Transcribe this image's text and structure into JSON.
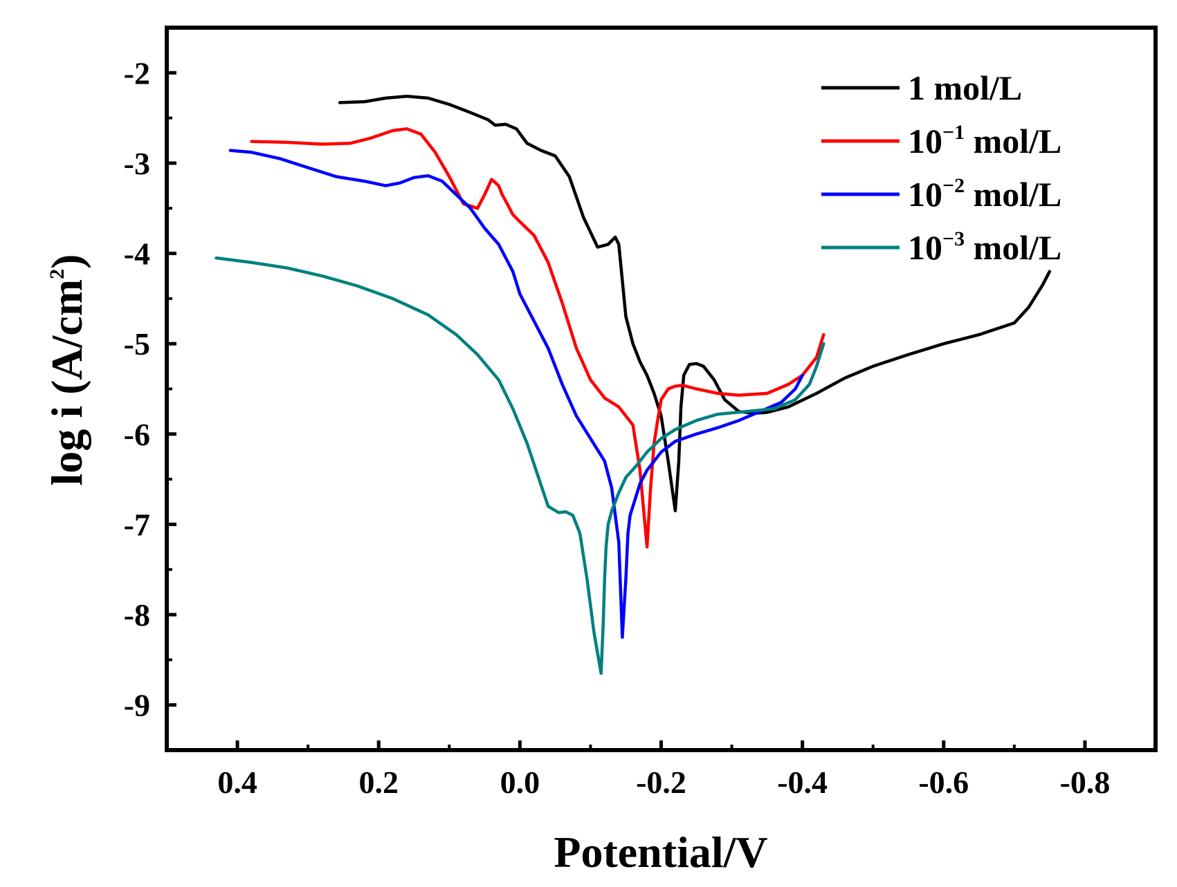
{
  "chart_data": {
    "type": "line",
    "xlabel": "Potential/V",
    "ylabel_main": "log i (A/cm",
    "ylabel_sup": "2",
    "ylabel_close": ")",
    "xlim": [
      0.5,
      -0.9
    ],
    "ylim": [
      -9.5,
      -1.5
    ],
    "x_ticks": [
      0.4,
      0.2,
      0.0,
      -0.2,
      -0.4,
      -0.6,
      -0.8
    ],
    "x_tick_labels": [
      "0.4",
      "0.2",
      "0.0",
      "-0.2",
      "-0.4",
      "-0.6",
      "-0.8"
    ],
    "y_ticks": [
      -2,
      -3,
      -4,
      -5,
      -6,
      -7,
      -8,
      -9
    ],
    "y_tick_labels": [
      "-2",
      "-3",
      "-4",
      "-5",
      "-6",
      "-7",
      "-8",
      "-9"
    ],
    "grid": false,
    "legend_position": "top-right",
    "series": [
      {
        "name": "1 mol/L",
        "legend_base": "1 mol/L",
        "legend_sup": "",
        "legend_tail": "",
        "color": "#000000",
        "x": [
          0.255,
          0.22,
          0.19,
          0.16,
          0.13,
          0.1,
          0.07,
          0.045,
          0.035,
          0.02,
          0.005,
          -0.01,
          -0.03,
          -0.05,
          -0.07,
          -0.09,
          -0.11,
          -0.125,
          -0.135,
          -0.14,
          -0.145,
          -0.15,
          -0.16,
          -0.17,
          -0.18,
          -0.19,
          -0.2,
          -0.21,
          -0.22,
          -0.225,
          -0.228,
          -0.232,
          -0.24,
          -0.25,
          -0.26,
          -0.275,
          -0.29,
          -0.31,
          -0.33,
          -0.35,
          -0.38,
          -0.42,
          -0.46,
          -0.5,
          -0.55,
          -0.6,
          -0.65,
          -0.7,
          -0.72,
          -0.74,
          -0.75
        ],
        "y": [
          -2.33,
          -2.32,
          -2.28,
          -2.26,
          -2.28,
          -2.35,
          -2.44,
          -2.52,
          -2.58,
          -2.57,
          -2.62,
          -2.78,
          -2.86,
          -2.92,
          -3.15,
          -3.6,
          -3.93,
          -3.9,
          -3.82,
          -3.9,
          -4.3,
          -4.7,
          -5.0,
          -5.2,
          -5.35,
          -5.55,
          -5.8,
          -6.3,
          -6.85,
          -6.3,
          -5.7,
          -5.35,
          -5.23,
          -5.22,
          -5.25,
          -5.4,
          -5.62,
          -5.75,
          -5.77,
          -5.76,
          -5.7,
          -5.55,
          -5.38,
          -5.25,
          -5.12,
          -5.0,
          -4.9,
          -4.77,
          -4.6,
          -4.35,
          -4.2
        ]
      },
      {
        "name": "10⁻¹ mol/L",
        "legend_base": "10",
        "legend_sup": "−1",
        "legend_tail": " mol/L",
        "color": "#ff0000",
        "x": [
          0.38,
          0.33,
          0.28,
          0.24,
          0.21,
          0.18,
          0.16,
          0.14,
          0.12,
          0.1,
          0.08,
          0.06,
          0.05,
          0.04,
          0.03,
          0.025,
          0.02,
          0.01,
          0.0,
          -0.02,
          -0.04,
          -0.06,
          -0.08,
          -0.1,
          -0.12,
          -0.14,
          -0.16,
          -0.17,
          -0.18,
          -0.185,
          -0.188,
          -0.19,
          -0.195,
          -0.2,
          -0.21,
          -0.22,
          -0.23,
          -0.25,
          -0.28,
          -0.31,
          -0.35,
          -0.38,
          -0.4,
          -0.42,
          -0.43
        ],
        "y": [
          -2.76,
          -2.77,
          -2.79,
          -2.78,
          -2.72,
          -2.64,
          -2.62,
          -2.68,
          -2.88,
          -3.15,
          -3.45,
          -3.5,
          -3.35,
          -3.18,
          -3.25,
          -3.35,
          -3.42,
          -3.57,
          -3.65,
          -3.8,
          -4.1,
          -4.55,
          -5.05,
          -5.4,
          -5.6,
          -5.7,
          -5.9,
          -6.4,
          -7.25,
          -6.6,
          -6.3,
          -6.1,
          -5.85,
          -5.62,
          -5.5,
          -5.47,
          -5.46,
          -5.5,
          -5.55,
          -5.57,
          -5.55,
          -5.45,
          -5.35,
          -5.15,
          -4.9
        ]
      },
      {
        "name": "10⁻² mol/L",
        "legend_base": "10",
        "legend_sup": "−2",
        "legend_tail": " mol/L",
        "color": "#0000ff",
        "x": [
          0.41,
          0.38,
          0.34,
          0.3,
          0.26,
          0.22,
          0.19,
          0.17,
          0.15,
          0.13,
          0.11,
          0.09,
          0.07,
          0.05,
          0.03,
          0.01,
          0.0,
          -0.02,
          -0.04,
          -0.06,
          -0.08,
          -0.1,
          -0.12,
          -0.13,
          -0.14,
          -0.145,
          -0.15,
          -0.153,
          -0.156,
          -0.16,
          -0.17,
          -0.18,
          -0.2,
          -0.22,
          -0.25,
          -0.28,
          -0.31,
          -0.34,
          -0.37,
          -0.39,
          -0.4
        ],
        "y": [
          -2.86,
          -2.88,
          -2.95,
          -3.05,
          -3.15,
          -3.2,
          -3.25,
          -3.22,
          -3.16,
          -3.14,
          -3.2,
          -3.35,
          -3.5,
          -3.72,
          -3.9,
          -4.2,
          -4.45,
          -4.75,
          -5.05,
          -5.45,
          -5.8,
          -6.05,
          -6.3,
          -6.6,
          -7.2,
          -8.25,
          -7.6,
          -7.1,
          -6.9,
          -6.8,
          -6.55,
          -6.4,
          -6.2,
          -6.08,
          -6.0,
          -5.93,
          -5.85,
          -5.75,
          -5.65,
          -5.5,
          -5.35
        ]
      },
      {
        "name": "10⁻³ mol/L",
        "legend_base": "10",
        "legend_sup": "−3",
        "legend_tail": " mol/L",
        "color": "#008080",
        "x": [
          0.43,
          0.38,
          0.33,
          0.28,
          0.23,
          0.18,
          0.13,
          0.09,
          0.06,
          0.03,
          0.01,
          -0.01,
          -0.025,
          -0.04,
          -0.055,
          -0.065,
          -0.075,
          -0.085,
          -0.095,
          -0.105,
          -0.115,
          -0.118,
          -0.12,
          -0.122,
          -0.125,
          -0.13,
          -0.14,
          -0.15,
          -0.165,
          -0.18,
          -0.2,
          -0.22,
          -0.25,
          -0.28,
          -0.32,
          -0.36,
          -0.39,
          -0.41,
          -0.42,
          -0.43
        ],
        "y": [
          -4.05,
          -4.1,
          -4.16,
          -4.25,
          -4.36,
          -4.5,
          -4.68,
          -4.9,
          -5.12,
          -5.4,
          -5.72,
          -6.1,
          -6.45,
          -6.8,
          -6.87,
          -6.86,
          -6.9,
          -7.1,
          -7.6,
          -8.2,
          -8.65,
          -8.1,
          -7.6,
          -7.25,
          -7.0,
          -6.85,
          -6.65,
          -6.48,
          -6.35,
          -6.2,
          -6.05,
          -5.95,
          -5.85,
          -5.78,
          -5.75,
          -5.72,
          -5.62,
          -5.45,
          -5.25,
          -5.0
        ]
      }
    ]
  }
}
